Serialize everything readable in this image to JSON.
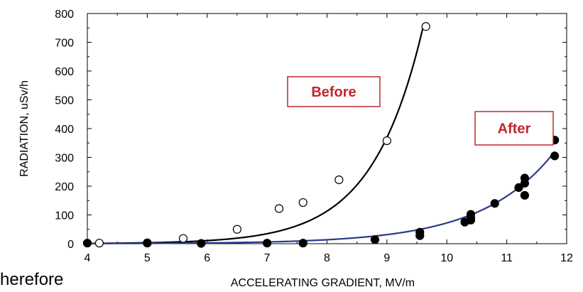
{
  "chart_data": {
    "type": "scatter",
    "xlabel": "ACCELERATING GRADIENT, MV/m",
    "ylabel": "RADIATION, uSv/h",
    "xlim": [
      4,
      12
    ],
    "ylim": [
      0,
      800
    ],
    "x_ticks": [
      4,
      5,
      6,
      7,
      8,
      9,
      10,
      11,
      12
    ],
    "y_ticks": [
      0,
      100,
      200,
      300,
      400,
      500,
      600,
      700,
      800
    ],
    "grid": false,
    "series": [
      {
        "marker": "open-circle",
        "color": "#000000",
        "points": [
          [
            4.2,
            2
          ],
          [
            5.0,
            3
          ],
          [
            5.6,
            18
          ],
          [
            6.5,
            50
          ],
          [
            7.2,
            122
          ],
          [
            7.6,
            143
          ],
          [
            8.2,
            222
          ],
          [
            9.0,
            358
          ],
          [
            9.65,
            755
          ]
        ],
        "fit_curve": {
          "color": "#000000",
          "x_start": 4.0,
          "x_end": 9.6,
          "y_start": 1,
          "y_end": 750
        }
      },
      {
        "marker": "filled-circle",
        "color": "#000000",
        "points": [
          [
            4.0,
            2
          ],
          [
            5.0,
            2
          ],
          [
            5.9,
            1
          ],
          [
            7.0,
            2
          ],
          [
            7.6,
            2
          ],
          [
            8.8,
            14
          ],
          [
            9.55,
            28
          ],
          [
            9.55,
            40
          ],
          [
            10.3,
            75
          ],
          [
            10.4,
            82
          ],
          [
            10.4,
            90
          ],
          [
            10.4,
            102
          ],
          [
            10.8,
            140
          ],
          [
            11.2,
            195
          ],
          [
            11.3,
            168
          ],
          [
            11.3,
            210
          ],
          [
            11.3,
            228
          ],
          [
            11.8,
            305
          ],
          [
            11.8,
            360
          ]
        ],
        "fit_curve": {
          "color": "#2b3a8f",
          "x_start": 4.0,
          "x_end": 11.8,
          "y_start": 0.5,
          "y_end": 320
        }
      }
    ],
    "annotations": [
      {
        "text": "Before",
        "color": "#c0282d"
      },
      {
        "text": "After",
        "color": "#c0282d"
      }
    ]
  },
  "stray_text": "herefore"
}
